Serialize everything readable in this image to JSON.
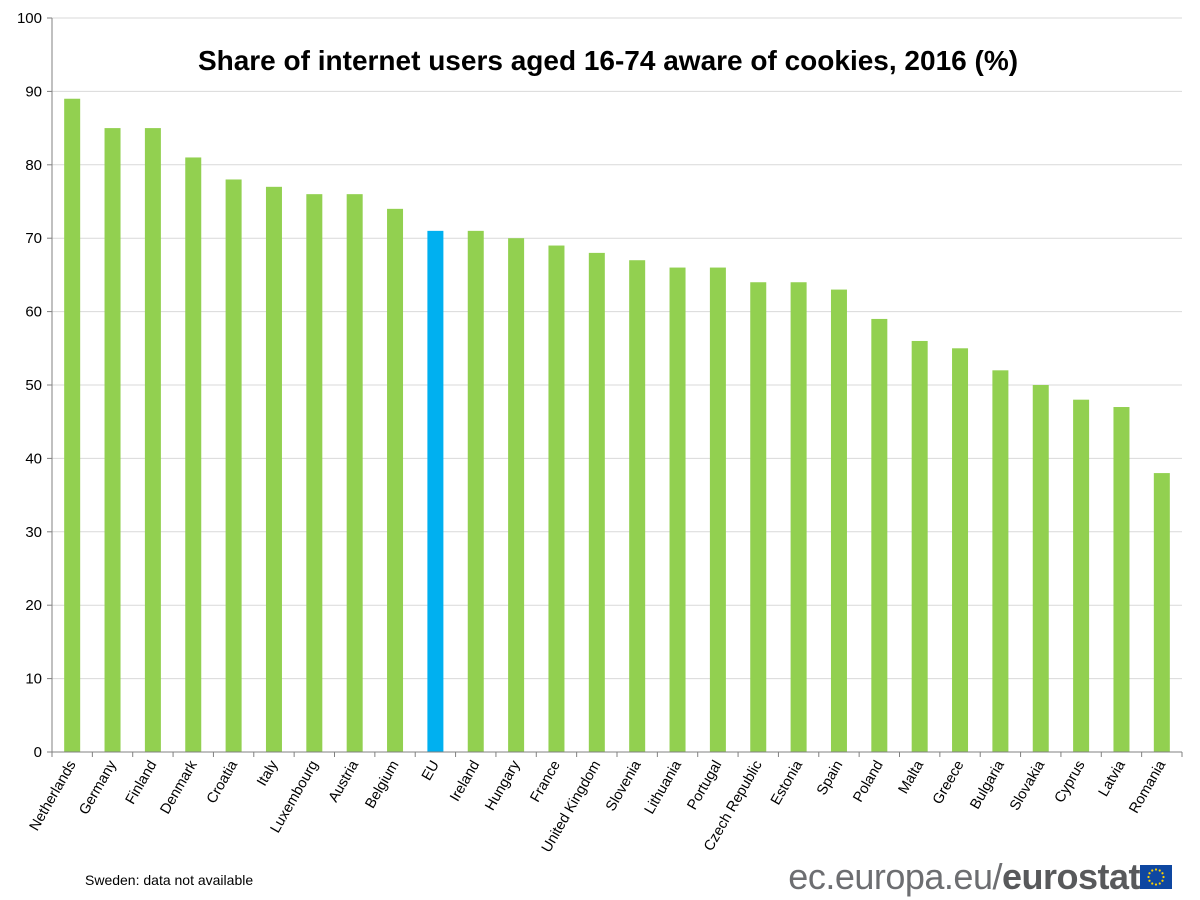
{
  "chart_data": {
    "type": "bar",
    "title": "Share of internet users aged 16-74 aware of cookies, 2016 (%)",
    "xlabel": "",
    "ylabel": "",
    "ylim": [
      0,
      100
    ],
    "yticks": [
      0,
      10,
      20,
      30,
      40,
      50,
      60,
      70,
      80,
      90,
      100
    ],
    "grid": true,
    "categories": [
      "Netherlands",
      "Germany",
      "Finland",
      "Denmark",
      "Croatia",
      "Italy",
      "Luxembourg",
      "Austria",
      "Belgium",
      "EU",
      "Ireland",
      "Hungary",
      "France",
      "United Kingdom",
      "Slovenia",
      "Lithuania",
      "Portugal",
      "Czech Republic",
      "Estonia",
      "Spain",
      "Poland",
      "Malta",
      "Greece",
      "Bulgaria",
      "Slovakia",
      "Cyprus",
      "Latvia",
      "Romania"
    ],
    "values": [
      89,
      85,
      85,
      81,
      78,
      77,
      76,
      76,
      74,
      71,
      71,
      70,
      69,
      68,
      67,
      66,
      66,
      64,
      64,
      63,
      59,
      56,
      55,
      52,
      50,
      48,
      47,
      38
    ],
    "highlight": "EU",
    "colors": {
      "bar": "#92d050",
      "highlight": "#00b0f0",
      "grid": "#d9d9d9",
      "axis": "#808080"
    }
  },
  "footer": {
    "note": "Sweden: data not available",
    "brand_site": "ec.europa.eu/",
    "brand_name": "eurostat"
  }
}
